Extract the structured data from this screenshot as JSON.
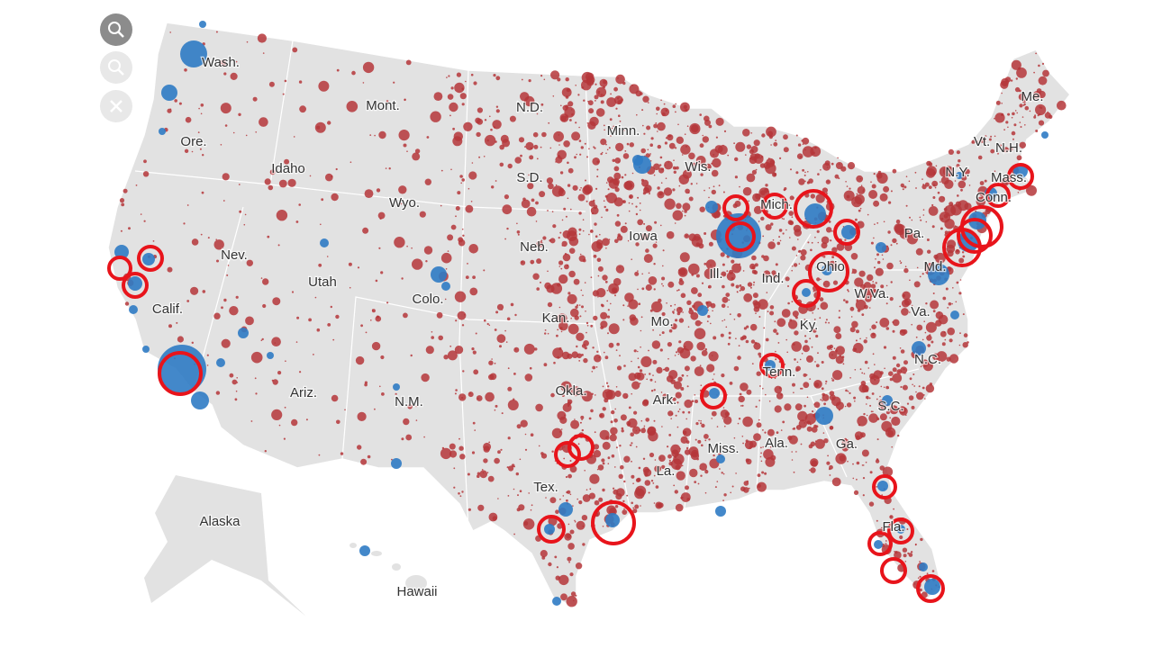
{
  "map": {
    "labels": [
      "Wash.",
      "Mont.",
      "N.D.",
      "Minn.",
      "Me.",
      "Ore.",
      "Idaho",
      "Wis.",
      "Vt.",
      "N.H.",
      "N.Y.",
      "Mass.",
      "S.D.",
      "Wyo.",
      "Conn.",
      "Mich.",
      "Nev.",
      "Neb.",
      "Iowa",
      "Pa.",
      "Ohio",
      "Ind.",
      "Ill.",
      "Md.",
      "Utah",
      "Colo.",
      "Calif.",
      "Kan.",
      "Mo.",
      "W.Va.",
      "Va.",
      "Ky.",
      "N.C.",
      "Tenn.",
      "Ariz.",
      "N.M.",
      "Okla.",
      "Ark.",
      "S.C.",
      "Miss.",
      "Ala.",
      "Ga.",
      "La.",
      "Tex.",
      "Fla.",
      "Alaska",
      "Hawaii"
    ]
  }
}
